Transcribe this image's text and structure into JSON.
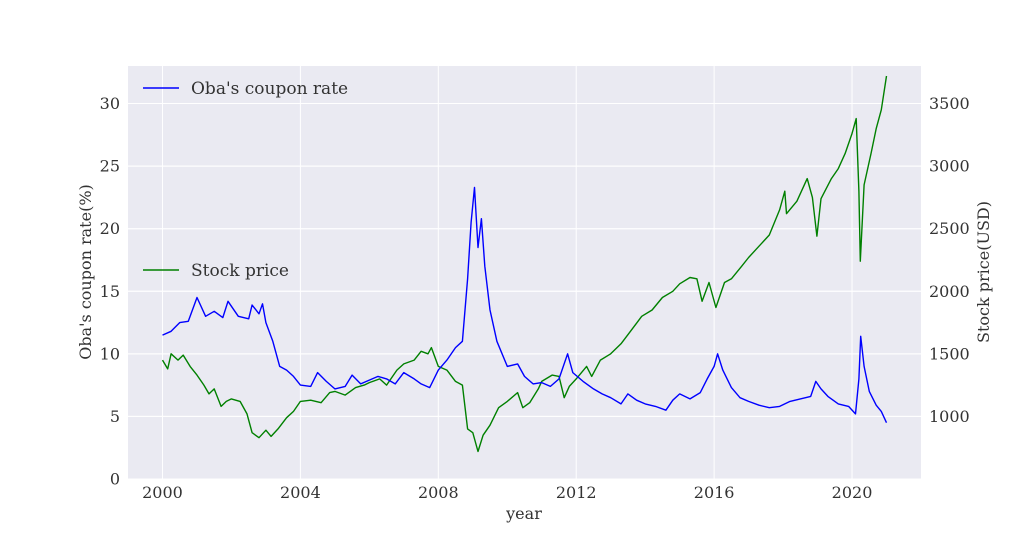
{
  "chart_data": {
    "type": "line",
    "xlabel": "year",
    "ylabel_left": "Oba's coupon rate(%)",
    "ylabel_right": "Stock price(USD)",
    "xlim": [
      1999.0,
      2022.0
    ],
    "ylim_left": [
      0,
      33
    ],
    "ylim_right": [
      500,
      3800
    ],
    "x_ticks": [
      2000,
      2004,
      2008,
      2012,
      2016,
      2020
    ],
    "y_ticks_left": [
      0,
      5,
      10,
      15,
      20,
      25,
      30
    ],
    "y_ticks_right": [
      1000,
      1500,
      2000,
      2500,
      3000,
      3500
    ],
    "grid": true,
    "series": [
      {
        "name": "Oba's coupon rate",
        "axis": "left",
        "color": "#0000ff",
        "legend_position": "upper-left",
        "points": [
          [
            2000.0,
            11.5
          ],
          [
            2000.25,
            11.8
          ],
          [
            2000.5,
            12.5
          ],
          [
            2000.75,
            12.6
          ],
          [
            2001.0,
            14.5
          ],
          [
            2001.25,
            13.0
          ],
          [
            2001.5,
            13.4
          ],
          [
            2001.75,
            12.9
          ],
          [
            2001.9,
            14.2
          ],
          [
            2002.2,
            13.0
          ],
          [
            2002.5,
            12.8
          ],
          [
            2002.6,
            13.9
          ],
          [
            2002.8,
            13.2
          ],
          [
            2002.9,
            14.0
          ],
          [
            2003.0,
            12.5
          ],
          [
            2003.2,
            11.0
          ],
          [
            2003.4,
            9.0
          ],
          [
            2003.6,
            8.7
          ],
          [
            2003.8,
            8.2
          ],
          [
            2004.0,
            7.5
          ],
          [
            2004.3,
            7.4
          ],
          [
            2004.5,
            8.5
          ],
          [
            2004.75,
            7.8
          ],
          [
            2005.0,
            7.2
          ],
          [
            2005.3,
            7.4
          ],
          [
            2005.5,
            8.3
          ],
          [
            2005.75,
            7.6
          ],
          [
            2006.0,
            7.9
          ],
          [
            2006.25,
            8.2
          ],
          [
            2006.5,
            8.0
          ],
          [
            2006.75,
            7.6
          ],
          [
            2007.0,
            8.5
          ],
          [
            2007.3,
            8.0
          ],
          [
            2007.5,
            7.6
          ],
          [
            2007.75,
            7.3
          ],
          [
            2008.0,
            8.7
          ],
          [
            2008.25,
            9.5
          ],
          [
            2008.5,
            10.5
          ],
          [
            2008.7,
            11.0
          ],
          [
            2008.85,
            16.0
          ],
          [
            2008.95,
            20.5
          ],
          [
            2009.05,
            23.3
          ],
          [
            2009.15,
            18.5
          ],
          [
            2009.25,
            20.8
          ],
          [
            2009.35,
            17.0
          ],
          [
            2009.5,
            13.5
          ],
          [
            2009.7,
            11.0
          ],
          [
            2010.0,
            9.0
          ],
          [
            2010.3,
            9.2
          ],
          [
            2010.5,
            8.2
          ],
          [
            2010.75,
            7.6
          ],
          [
            2011.0,
            7.7
          ],
          [
            2011.25,
            7.4
          ],
          [
            2011.5,
            8.0
          ],
          [
            2011.75,
            10.0
          ],
          [
            2011.9,
            8.5
          ],
          [
            2012.2,
            7.8
          ],
          [
            2012.5,
            7.2
          ],
          [
            2012.75,
            6.8
          ],
          [
            2013.0,
            6.5
          ],
          [
            2013.3,
            6.0
          ],
          [
            2013.5,
            6.8
          ],
          [
            2013.75,
            6.3
          ],
          [
            2014.0,
            6.0
          ],
          [
            2014.3,
            5.8
          ],
          [
            2014.6,
            5.5
          ],
          [
            2014.8,
            6.3
          ],
          [
            2015.0,
            6.8
          ],
          [
            2015.3,
            6.4
          ],
          [
            2015.6,
            6.9
          ],
          [
            2015.8,
            8.0
          ],
          [
            2016.0,
            9.0
          ],
          [
            2016.1,
            10.0
          ],
          [
            2016.25,
            8.7
          ],
          [
            2016.5,
            7.3
          ],
          [
            2016.75,
            6.5
          ],
          [
            2017.0,
            6.2
          ],
          [
            2017.3,
            5.9
          ],
          [
            2017.6,
            5.7
          ],
          [
            2017.9,
            5.8
          ],
          [
            2018.2,
            6.2
          ],
          [
            2018.5,
            6.4
          ],
          [
            2018.8,
            6.6
          ],
          [
            2018.95,
            7.8
          ],
          [
            2019.1,
            7.2
          ],
          [
            2019.3,
            6.6
          ],
          [
            2019.6,
            6.0
          ],
          [
            2019.9,
            5.8
          ],
          [
            2020.1,
            5.2
          ],
          [
            2020.2,
            8.0
          ],
          [
            2020.25,
            11.4
          ],
          [
            2020.35,
            9.0
          ],
          [
            2020.5,
            7.0
          ],
          [
            2020.7,
            5.9
          ],
          [
            2020.85,
            5.4
          ],
          [
            2021.0,
            4.5
          ]
        ]
      },
      {
        "name": "Stock price",
        "axis": "right",
        "color": "#008000",
        "legend_position": "center-left",
        "points": [
          [
            2000.0,
            1450
          ],
          [
            2000.15,
            1380
          ],
          [
            2000.25,
            1500
          ],
          [
            2000.45,
            1450
          ],
          [
            2000.6,
            1490
          ],
          [
            2000.8,
            1400
          ],
          [
            2001.0,
            1330
          ],
          [
            2001.2,
            1250
          ],
          [
            2001.35,
            1180
          ],
          [
            2001.5,
            1220
          ],
          [
            2001.7,
            1080
          ],
          [
            2001.85,
            1120
          ],
          [
            2002.0,
            1140
          ],
          [
            2002.25,
            1120
          ],
          [
            2002.45,
            1020
          ],
          [
            2002.6,
            870
          ],
          [
            2002.8,
            830
          ],
          [
            2003.0,
            890
          ],
          [
            2003.15,
            840
          ],
          [
            2003.35,
            900
          ],
          [
            2003.6,
            990
          ],
          [
            2003.8,
            1040
          ],
          [
            2004.0,
            1120
          ],
          [
            2004.3,
            1130
          ],
          [
            2004.6,
            1110
          ],
          [
            2004.85,
            1190
          ],
          [
            2005.0,
            1200
          ],
          [
            2005.3,
            1170
          ],
          [
            2005.6,
            1230
          ],
          [
            2005.85,
            1250
          ],
          [
            2006.0,
            1270
          ],
          [
            2006.3,
            1300
          ],
          [
            2006.5,
            1250
          ],
          [
            2006.8,
            1370
          ],
          [
            2007.0,
            1420
          ],
          [
            2007.3,
            1450
          ],
          [
            2007.5,
            1520
          ],
          [
            2007.7,
            1500
          ],
          [
            2007.8,
            1550
          ],
          [
            2008.0,
            1400
          ],
          [
            2008.25,
            1370
          ],
          [
            2008.5,
            1280
          ],
          [
            2008.7,
            1250
          ],
          [
            2008.85,
            900
          ],
          [
            2009.0,
            870
          ],
          [
            2009.15,
            720
          ],
          [
            2009.3,
            850
          ],
          [
            2009.5,
            930
          ],
          [
            2009.75,
            1070
          ],
          [
            2010.0,
            1120
          ],
          [
            2010.3,
            1190
          ],
          [
            2010.45,
            1070
          ],
          [
            2010.65,
            1110
          ],
          [
            2010.9,
            1220
          ],
          [
            2011.0,
            1280
          ],
          [
            2011.3,
            1330
          ],
          [
            2011.5,
            1320
          ],
          [
            2011.65,
            1150
          ],
          [
            2011.8,
            1240
          ],
          [
            2012.0,
            1300
          ],
          [
            2012.3,
            1400
          ],
          [
            2012.45,
            1320
          ],
          [
            2012.7,
            1450
          ],
          [
            2013.0,
            1500
          ],
          [
            2013.3,
            1580
          ],
          [
            2013.6,
            1690
          ],
          [
            2013.9,
            1800
          ],
          [
            2014.2,
            1850
          ],
          [
            2014.5,
            1950
          ],
          [
            2014.8,
            2000
          ],
          [
            2015.0,
            2060
          ],
          [
            2015.3,
            2110
          ],
          [
            2015.5,
            2100
          ],
          [
            2015.65,
            1920
          ],
          [
            2015.85,
            2070
          ],
          [
            2016.05,
            1870
          ],
          [
            2016.3,
            2070
          ],
          [
            2016.5,
            2100
          ],
          [
            2016.8,
            2200
          ],
          [
            2017.0,
            2270
          ],
          [
            2017.3,
            2360
          ],
          [
            2017.6,
            2450
          ],
          [
            2017.9,
            2650
          ],
          [
            2018.05,
            2800
          ],
          [
            2018.1,
            2620
          ],
          [
            2018.4,
            2720
          ],
          [
            2018.7,
            2900
          ],
          [
            2018.85,
            2750
          ],
          [
            2018.98,
            2440
          ],
          [
            2019.1,
            2740
          ],
          [
            2019.4,
            2900
          ],
          [
            2019.6,
            2980
          ],
          [
            2019.8,
            3100
          ],
          [
            2020.0,
            3260
          ],
          [
            2020.12,
            3380
          ],
          [
            2020.2,
            2800
          ],
          [
            2020.24,
            2240
          ],
          [
            2020.35,
            2850
          ],
          [
            2020.55,
            3100
          ],
          [
            2020.7,
            3300
          ],
          [
            2020.85,
            3450
          ],
          [
            2021.0,
            3720
          ]
        ]
      }
    ]
  }
}
